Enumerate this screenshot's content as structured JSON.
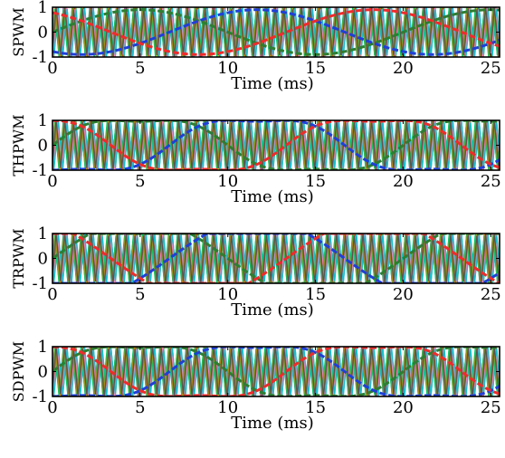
{
  "colors": {
    "carriers": [
      "#e41a1c",
      "#377eb8",
      "#4daf4a",
      "#984ea3",
      "#ff7f00",
      "#dede00",
      "#a65628",
      "#f781bf",
      "#17becf",
      "#00cc66",
      "#b8860b",
      "#555555"
    ],
    "phases": [
      "#2e7d32",
      "#1f3fd6",
      "#ef2b2b"
    ]
  },
  "chart_data": [
    {
      "type": "line",
      "panel": "SPWM",
      "ylabel": "SPWM",
      "xlabel": "Time (ms)",
      "xlim": [
        0,
        25.5
      ],
      "ylim": [
        -1,
        1
      ],
      "xticks": [
        "0",
        "5",
        "10",
        "15",
        "20",
        "25"
      ],
      "yticks": [
        "1",
        "0",
        "-1"
      ],
      "carrier": {
        "shape": "triangle",
        "count": 12,
        "period_ms": 0.5,
        "amplitude": [
          -1,
          1
        ]
      },
      "series": [
        {
          "mode": "sine",
          "amplitude": 0.9,
          "freq_hz": 50,
          "phase_deg": 0
        },
        {
          "mode": "sine",
          "amplitude": 0.9,
          "freq_hz": 50,
          "phase_deg": -120
        },
        {
          "mode": "sine",
          "amplitude": 0.9,
          "freq_hz": 50,
          "phase_deg": 120
        }
      ]
    },
    {
      "type": "line",
      "panel": "THPWM",
      "ylabel": "THPWM",
      "xlabel": "Time (ms)",
      "xlim": [
        0,
        25.5
      ],
      "ylim": [
        -1,
        1
      ],
      "xticks": [
        "0",
        "5",
        "10",
        "15",
        "20",
        "25"
      ],
      "yticks": [
        "1",
        "0",
        "-1"
      ],
      "carrier": {
        "shape": "triangle",
        "count": 12,
        "period_ms": 0.5,
        "amplitude": [
          -1,
          1
        ]
      },
      "series": [
        {
          "mode": "thi",
          "amplitude": 1.0,
          "freq_hz": 50,
          "phase_deg": 0
        },
        {
          "mode": "thi",
          "amplitude": 1.0,
          "freq_hz": 50,
          "phase_deg": -120
        },
        {
          "mode": "thi",
          "amplitude": 1.0,
          "freq_hz": 50,
          "phase_deg": 120
        }
      ]
    },
    {
      "type": "line",
      "panel": "TRPWM",
      "ylabel": "TRPWM",
      "xlabel": "Time (ms)",
      "xlim": [
        0,
        25.5
      ],
      "ylim": [
        -1,
        1
      ],
      "xticks": [
        "0",
        "5",
        "10",
        "15",
        "20",
        "25"
      ],
      "yticks": [
        "1",
        "0",
        "-1"
      ],
      "carrier": {
        "shape": "triangle",
        "count": 12,
        "period_ms": 0.5,
        "amplitude": [
          -1,
          1
        ]
      },
      "series": [
        {
          "mode": "trap",
          "amplitude": 1.0,
          "freq_hz": 50,
          "phase_deg": 0
        },
        {
          "mode": "trap",
          "amplitude": 1.0,
          "freq_hz": 50,
          "phase_deg": -120
        },
        {
          "mode": "trap",
          "amplitude": 1.0,
          "freq_hz": 50,
          "phase_deg": 120
        }
      ]
    },
    {
      "type": "line",
      "panel": "SDPWM",
      "ylabel": "SDPWM",
      "xlabel": "Time (ms)",
      "xlim": [
        0,
        25.5
      ],
      "ylim": [
        -1,
        1
      ],
      "xticks": [
        "0",
        "5",
        "10",
        "15",
        "20",
        "25"
      ],
      "yticks": [
        "1",
        "0",
        "-1"
      ],
      "carrier": {
        "shape": "triangle",
        "count": 12,
        "period_ms": 0.5,
        "amplitude": [
          -1,
          1
        ]
      },
      "series": [
        {
          "mode": "thi",
          "amplitude": 1.0,
          "freq_hz": 50,
          "phase_deg": 0
        },
        {
          "mode": "thi",
          "amplitude": 1.0,
          "freq_hz": 50,
          "phase_deg": -120
        },
        {
          "mode": "thi",
          "amplitude": 1.0,
          "freq_hz": 50,
          "phase_deg": 120
        }
      ]
    }
  ]
}
